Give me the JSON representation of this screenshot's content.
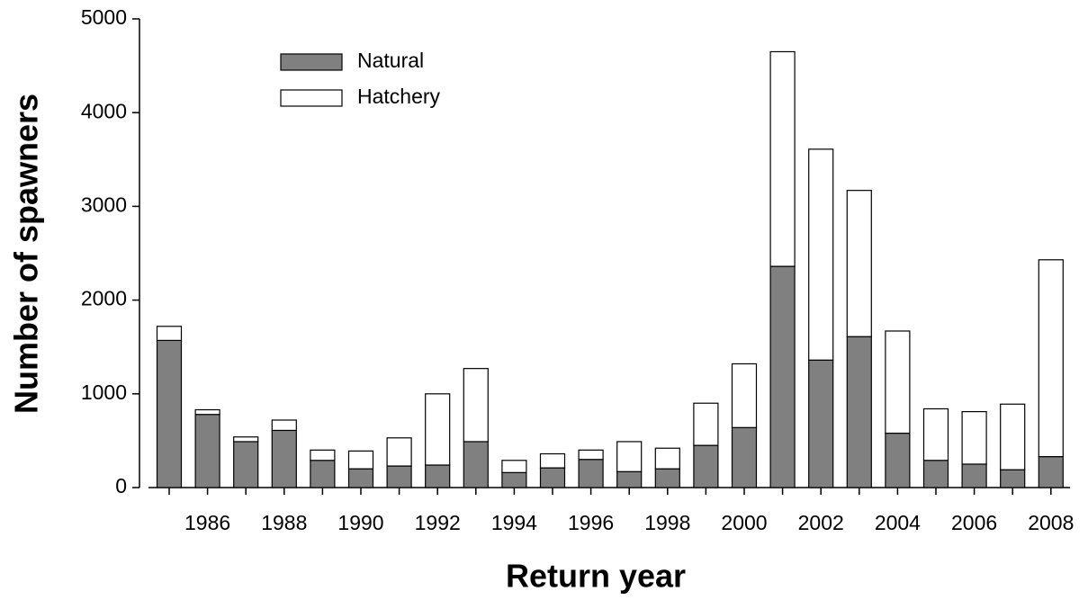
{
  "chart_data": {
    "type": "stacked_bar",
    "x_label": "Return year",
    "y_label": "Number of spawners",
    "categories": [
      null,
      "1986",
      null,
      "1988",
      null,
      "1990",
      null,
      "1992",
      null,
      "1994",
      null,
      "1996",
      null,
      "1998",
      null,
      "2000",
      null,
      "2002",
      null,
      "2004",
      null,
      "2006",
      null,
      "2008"
    ],
    "series": [
      {
        "name": "Natural",
        "color": "#808080",
        "values": [
          1570,
          780,
          490,
          610,
          290,
          200,
          230,
          240,
          490,
          160,
          210,
          300,
          170,
          200,
          450,
          640,
          2360,
          1360,
          1610,
          580,
          290,
          250,
          190,
          330
        ]
      },
      {
        "name": "Hatchery",
        "color": "#ffffff",
        "values": [
          150,
          50,
          50,
          110,
          110,
          190,
          300,
          760,
          780,
          130,
          150,
          100,
          320,
          220,
          450,
          680,
          2290,
          2250,
          1560,
          1090,
          550,
          560,
          700,
          2100
        ]
      }
    ],
    "ylim": [
      0,
      5000
    ],
    "yticks": [
      0,
      1000,
      2000,
      3000,
      4000,
      5000
    ],
    "legend": "upper-left"
  }
}
